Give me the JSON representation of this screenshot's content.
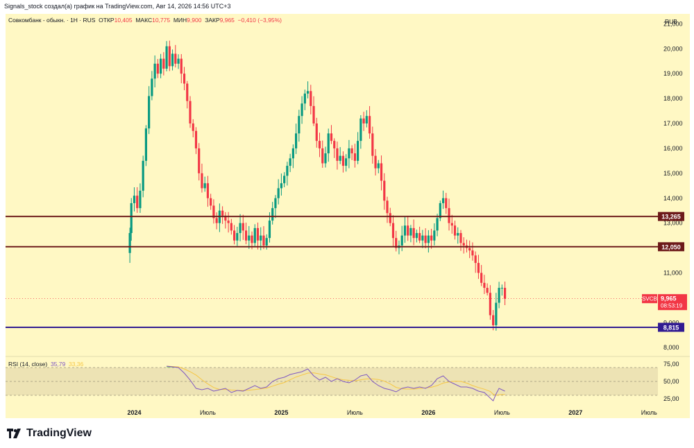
{
  "header": {
    "attribution": "Signals_stock создал(а) график на TradingView.com, Авг 14, 2026 14:56 UTC+3"
  },
  "legend": {
    "symbol": "Совкомбанк - обыкн. · 1Н · RUS",
    "open_label": "ОТКР",
    "open": "10,405",
    "high_label": "МАКС",
    "high": "10,775",
    "low_label": "МИН",
    "low": "9,900",
    "close_label": "ЗАКР",
    "close": "9,965",
    "change": "−0,410 (−3,95%)"
  },
  "rsi_legend": {
    "label": "RSI (14, close)",
    "value": "35,79",
    "ma_value": "33,36"
  },
  "brand": {
    "name": "TradingView"
  },
  "colors": {
    "background": "#fff8c4",
    "up": "#089981",
    "down": "#f23645",
    "level": "#6d1a1a",
    "support": "#311b92",
    "rsi": "#7e57c2",
    "rsi_ma": "#f7c744"
  },
  "chart_data": {
    "type": "candlestick",
    "currency": "RUB",
    "y_ticks": [
      "21,000",
      "20,000",
      "19,000",
      "18,000",
      "17,000",
      "16,000",
      "15,000",
      "14,000",
      "13,000",
      "11,000",
      "9,000",
      "8,000"
    ],
    "ylim": [
      7700,
      21400
    ],
    "x_ticks": [
      {
        "label": "2024",
        "t": 0
      },
      {
        "label": "Июль",
        "t": 0.5
      },
      {
        "label": "2025",
        "t": 1
      },
      {
        "label": "Июль",
        "t": 1.5
      },
      {
        "label": "2026",
        "t": 2
      },
      {
        "label": "Июль",
        "t": 2.5
      },
      {
        "label": "2027",
        "t": 3
      },
      {
        "label": "Июль",
        "t": 3.5
      }
    ],
    "xlim": [
      -0.875,
      3.56
    ],
    "close_path": [
      [
        -0.03,
        12600
      ],
      [
        -0.02,
        13800
      ],
      [
        0.0,
        14100
      ],
      [
        0.02,
        13600
      ],
      [
        0.04,
        14300
      ],
      [
        0.06,
        15500
      ],
      [
        0.08,
        16800
      ],
      [
        0.1,
        18100
      ],
      [
        0.12,
        18800
      ],
      [
        0.14,
        19400
      ],
      [
        0.16,
        19000
      ],
      [
        0.18,
        19600
      ],
      [
        0.2,
        19200
      ],
      [
        0.22,
        20100
      ],
      [
        0.24,
        19300
      ],
      [
        0.26,
        19800
      ],
      [
        0.28,
        19400
      ],
      [
        0.3,
        19600
      ],
      [
        0.32,
        19000
      ],
      [
        0.34,
        18600
      ],
      [
        0.36,
        17900
      ],
      [
        0.38,
        17000
      ],
      [
        0.4,
        16700
      ],
      [
        0.42,
        16000
      ],
      [
        0.44,
        15000
      ],
      [
        0.46,
        14400
      ],
      [
        0.48,
        14600
      ],
      [
        0.5,
        14000
      ],
      [
        0.52,
        13700
      ],
      [
        0.54,
        13200
      ],
      [
        0.56,
        13000
      ],
      [
        0.58,
        13500
      ],
      [
        0.6,
        13300
      ],
      [
        0.62,
        13100
      ],
      [
        0.64,
        13000
      ],
      [
        0.66,
        12700
      ],
      [
        0.68,
        12300
      ],
      [
        0.7,
        12600
      ],
      [
        0.72,
        13000
      ],
      [
        0.74,
        12700
      ],
      [
        0.76,
        12300
      ],
      [
        0.78,
        12500
      ],
      [
        0.8,
        12200
      ],
      [
        0.82,
        12800
      ],
      [
        0.84,
        12300
      ],
      [
        0.86,
        12500
      ],
      [
        0.88,
        12100
      ],
      [
        0.9,
        12400
      ],
      [
        0.92,
        13100
      ],
      [
        0.94,
        13600
      ],
      [
        0.96,
        14000
      ],
      [
        0.98,
        14400
      ],
      [
        1.0,
        14600
      ],
      [
        1.02,
        14900
      ],
      [
        1.04,
        15300
      ],
      [
        1.06,
        15600
      ],
      [
        1.08,
        16000
      ],
      [
        1.1,
        16600
      ],
      [
        1.12,
        17300
      ],
      [
        1.14,
        17800
      ],
      [
        1.16,
        18200
      ],
      [
        1.18,
        18300
      ],
      [
        1.2,
        17700
      ],
      [
        1.22,
        17000
      ],
      [
        1.24,
        16300
      ],
      [
        1.26,
        16000
      ],
      [
        1.28,
        15400
      ],
      [
        1.3,
        15800
      ],
      [
        1.32,
        16600
      ],
      [
        1.34,
        16300
      ],
      [
        1.36,
        16000
      ],
      [
        1.38,
        15500
      ],
      [
        1.4,
        15700
      ],
      [
        1.42,
        15300
      ],
      [
        1.44,
        15600
      ],
      [
        1.46,
        16000
      ],
      [
        1.48,
        15800
      ],
      [
        1.5,
        15500
      ],
      [
        1.52,
        16300
      ],
      [
        1.54,
        17200
      ],
      [
        1.56,
        17000
      ],
      [
        1.58,
        17300
      ],
      [
        1.6,
        16600
      ],
      [
        1.62,
        15700
      ],
      [
        1.64,
        15200
      ],
      [
        1.66,
        15400
      ],
      [
        1.68,
        14700
      ],
      [
        1.7,
        13900
      ],
      [
        1.72,
        13400
      ],
      [
        1.74,
        13000
      ],
      [
        1.76,
        12400
      ],
      [
        1.78,
        12000
      ],
      [
        1.8,
        12100
      ],
      [
        1.82,
        12500
      ],
      [
        1.84,
        12900
      ],
      [
        1.86,
        12500
      ],
      [
        1.88,
        12800
      ],
      [
        1.9,
        12400
      ],
      [
        1.92,
        12600
      ],
      [
        1.94,
        12300
      ],
      [
        1.96,
        12500
      ],
      [
        1.98,
        12200
      ],
      [
        2.0,
        12500
      ],
      [
        2.02,
        12300
      ],
      [
        2.04,
        12700
      ],
      [
        2.06,
        13200
      ],
      [
        2.08,
        13800
      ],
      [
        2.1,
        14000
      ],
      [
        2.12,
        13600
      ],
      [
        2.14,
        13000
      ],
      [
        2.16,
        12900
      ],
      [
        2.18,
        12500
      ],
      [
        2.2,
        12600
      ],
      [
        2.22,
        12200
      ],
      [
        2.24,
        12100
      ],
      [
        2.26,
        12000
      ],
      [
        2.28,
        11900
      ],
      [
        2.3,
        11700
      ],
      [
        2.32,
        11400
      ],
      [
        2.34,
        11000
      ],
      [
        2.36,
        10600
      ],
      [
        2.38,
        10400
      ],
      [
        2.4,
        10200
      ],
      [
        2.42,
        9300
      ],
      [
        2.44,
        8900
      ],
      [
        2.46,
        9800
      ],
      [
        2.48,
        10400
      ],
      [
        2.5,
        10400
      ],
      [
        2.52,
        9965
      ]
    ],
    "levels": [
      {
        "value": 13265,
        "label": "13,265",
        "color": "#6d1a1a"
      },
      {
        "value": 12050,
        "label": "12,050",
        "color": "#6d1a1a"
      },
      {
        "value": 8815,
        "label": "8,815",
        "color": "#311b92"
      }
    ],
    "last_price": {
      "value": 9965,
      "ticker": "SVCB",
      "label": "9,965",
      "countdown": "08:53:19"
    },
    "rsi": {
      "period": 14,
      "ylim": [
        15,
        85
      ],
      "ticks": [
        "75,00",
        "50,00",
        "25,00"
      ],
      "band": [
        30,
        70
      ],
      "path": [
        [
          0.22,
          72
        ],
        [
          0.3,
          70
        ],
        [
          0.34,
          62
        ],
        [
          0.38,
          52
        ],
        [
          0.42,
          40
        ],
        [
          0.46,
          38
        ],
        [
          0.5,
          40
        ],
        [
          0.54,
          36
        ],
        [
          0.58,
          38
        ],
        [
          0.62,
          40
        ],
        [
          0.66,
          34
        ],
        [
          0.7,
          37
        ],
        [
          0.74,
          36
        ],
        [
          0.78,
          40
        ],
        [
          0.82,
          44
        ],
        [
          0.86,
          40
        ],
        [
          0.9,
          42
        ],
        [
          0.94,
          50
        ],
        [
          0.98,
          54
        ],
        [
          1.02,
          56
        ],
        [
          1.06,
          60
        ],
        [
          1.1,
          62
        ],
        [
          1.14,
          64
        ],
        [
          1.18,
          68
        ],
        [
          1.22,
          58
        ],
        [
          1.26,
          52
        ],
        [
          1.3,
          56
        ],
        [
          1.34,
          50
        ],
        [
          1.38,
          54
        ],
        [
          1.42,
          50
        ],
        [
          1.46,
          48
        ],
        [
          1.5,
          52
        ],
        [
          1.54,
          58
        ],
        [
          1.58,
          60
        ],
        [
          1.62,
          50
        ],
        [
          1.66,
          44
        ],
        [
          1.7,
          40
        ],
        [
          1.74,
          38
        ],
        [
          1.78,
          35
        ],
        [
          1.82,
          40
        ],
        [
          1.86,
          42
        ],
        [
          1.9,
          40
        ],
        [
          1.94,
          42
        ],
        [
          1.98,
          40
        ],
        [
          2.02,
          44
        ],
        [
          2.06,
          54
        ],
        [
          2.1,
          58
        ],
        [
          2.14,
          50
        ],
        [
          2.18,
          46
        ],
        [
          2.22,
          42
        ],
        [
          2.26,
          42
        ],
        [
          2.3,
          40
        ],
        [
          2.34,
          36
        ],
        [
          2.38,
          34
        ],
        [
          2.42,
          26
        ],
        [
          2.44,
          22
        ],
        [
          2.46,
          32
        ],
        [
          2.48,
          40
        ],
        [
          2.52,
          36
        ]
      ]
    }
  }
}
